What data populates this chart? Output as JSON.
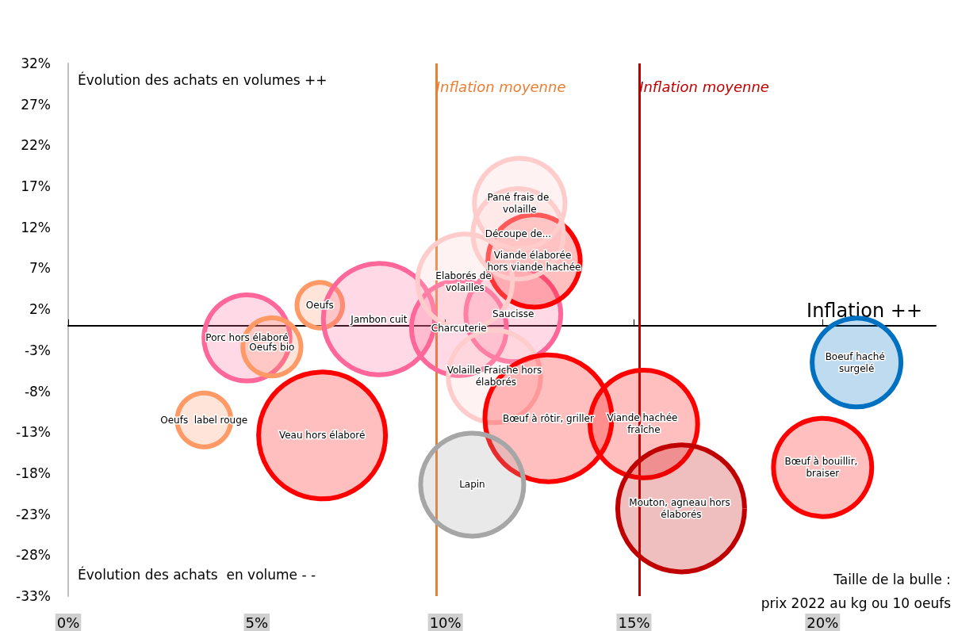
{
  "chart_data": {
    "type": "bubble",
    "series": [
      {
        "name": "Porc hors élaboré",
        "color": "#ff6699",
        "x": [
          4.74
        ],
        "values": [
          -1.5
        ],
        "sizes": [
          0.46
        ]
      },
      {
        "name": "Oeufs bio",
        "color": "#ff9966",
        "x": [
          5.4
        ],
        "values": [
          -2.6
        ],
        "sizes": [
          0.21
        ]
      },
      {
        "name": "Oeufs",
        "color": "#ff9966",
        "x": [
          6.67
        ],
        "values": [
          2.5
        ],
        "sizes": [
          0.13
        ]
      },
      {
        "name": "Jambon cuit",
        "color": "#ff6699",
        "x": [
          8.24
        ],
        "values": [
          0.8
        ],
        "sizes": [
          0.77
        ]
      },
      {
        "name": "Charcuterie",
        "color": "#ff6699",
        "x": [
          10.36
        ],
        "values": [
          -0.3
        ],
        "sizes": [
          0.56
        ]
      },
      {
        "name": "Saucisse",
        "color": "#ff6699",
        "x": [
          11.8
        ],
        "values": [
          1.4
        ],
        "sizes": [
          0.56
        ]
      },
      {
        "name": "Viande élaborée hors viande hachée",
        "color": "#ff0000",
        "x": [
          12.35
        ],
        "values": [
          7.9
        ],
        "sizes": [
          0.53
        ]
      },
      {
        "name": "Découpe de...",
        "color": "#ffcccc",
        "x": [
          11.93
        ],
        "values": [
          11.2
        ],
        "sizes": [
          0.51
        ]
      },
      {
        "name": "Pané frais de volaille",
        "color": "#ffcccc",
        "x": [
          11.97
        ],
        "values": [
          14.9
        ],
        "sizes": [
          0.51
        ]
      },
      {
        "name": "Elaborés de volailles",
        "color": "#ffcccc",
        "x": [
          10.52
        ],
        "values": [
          5.4
        ],
        "sizes": [
          0.56
        ]
      },
      {
        "name": "Volaille Fraiche hors élaborés",
        "color": "#ffcccc",
        "x": [
          11.3
        ],
        "values": [
          -6.2
        ],
        "sizes": [
          0.53
        ]
      },
      {
        "name": "Bœuf à rôtir, griller",
        "color": "#ff0000",
        "x": [
          12.73
        ],
        "values": [
          -11.3
        ],
        "sizes": [
          1
        ]
      },
      {
        "name": "Lapin",
        "color": "#a6a6a6",
        "x": [
          10.71
        ],
        "values": [
          -19.4
        ],
        "sizes": [
          0.66
        ]
      },
      {
        "name": "Viande hachée fraîche",
        "color": "#ff0000",
        "x": [
          15.26
        ],
        "values": [
          -12.0
        ],
        "sizes": [
          0.72
        ]
      },
      {
        "name": "Mouton, agneau hors élaborés",
        "color": "#c00000",
        "x": [
          16.25
        ],
        "values": [
          -22.3
        ],
        "sizes": [
          1
        ]
      },
      {
        "name": "Bœuf à bouillir, braiser",
        "color": "#ff0000",
        "x": [
          20.0
        ],
        "values": [
          -17.3
        ],
        "sizes": [
          0.6
        ]
      },
      {
        "name": "Boeuf haché surgelé",
        "color": "#0070c0",
        "x": [
          20.9
        ],
        "values": [
          -4.5
        ],
        "sizes": [
          0.49
        ]
      },
      {
        "name": "Oeufs  label rouge",
        "color": "#ff9966",
        "x": [
          3.6
        ],
        "values": [
          -11.5
        ],
        "sizes": [
          0.18
        ]
      },
      {
        "name": "Veau hors élaboré",
        "color": "#ff0000",
        "x": [
          6.73
        ],
        "values": [
          -13.4
        ],
        "sizes": [
          1
        ]
      }
    ],
    "xlim": [
      0,
      23
    ],
    "xticks": [
      {
        "value": 0,
        "label": "0%"
      },
      {
        "value": 5,
        "label": "5%"
      },
      {
        "value": 10,
        "label": "10%"
      },
      {
        "value": 15,
        "label": "15%"
      },
      {
        "value": 20,
        "label": "20%"
      }
    ],
    "ylim": [
      -33,
      32
    ],
    "yticks": [
      {
        "value": -33,
        "label": "-33%"
      },
      {
        "value": -28,
        "label": "-28%"
      },
      {
        "value": -23,
        "label": "-23%"
      },
      {
        "value": -18,
        "label": "-18%"
      },
      {
        "value": -13,
        "label": "-13%"
      },
      {
        "value": -8,
        "label": "-8%"
      },
      {
        "value": -3,
        "label": "-3%"
      },
      {
        "value": 2,
        "label": "2%"
      },
      {
        "value": 7,
        "label": "7%"
      },
      {
        "value": 12,
        "label": "12%"
      },
      {
        "value": 17,
        "label": "17%"
      },
      {
        "value": 22,
        "label": "22%"
      },
      {
        "value": 27,
        "label": "27%"
      },
      {
        "value": 32,
        "label": "32%"
      }
    ],
    "ref_lines": [
      {
        "axis": "x",
        "value": 9.75,
        "label": "Inflation moyenne",
        "color": "#ed7d31"
      },
      {
        "axis": "x",
        "value": 15.14,
        "label": "Inflation moyenne",
        "color": "#c00000"
      }
    ],
    "annotations": [
      "Évolution des achats en volumes ++",
      "Évolution des achats  en volume - -",
      "Inflation ++",
      "Taille de la bulle :",
      "prix 2022 au kg ou 10 oeufs"
    ],
    "grid": false,
    "legend": false,
    "marker": "circle"
  }
}
